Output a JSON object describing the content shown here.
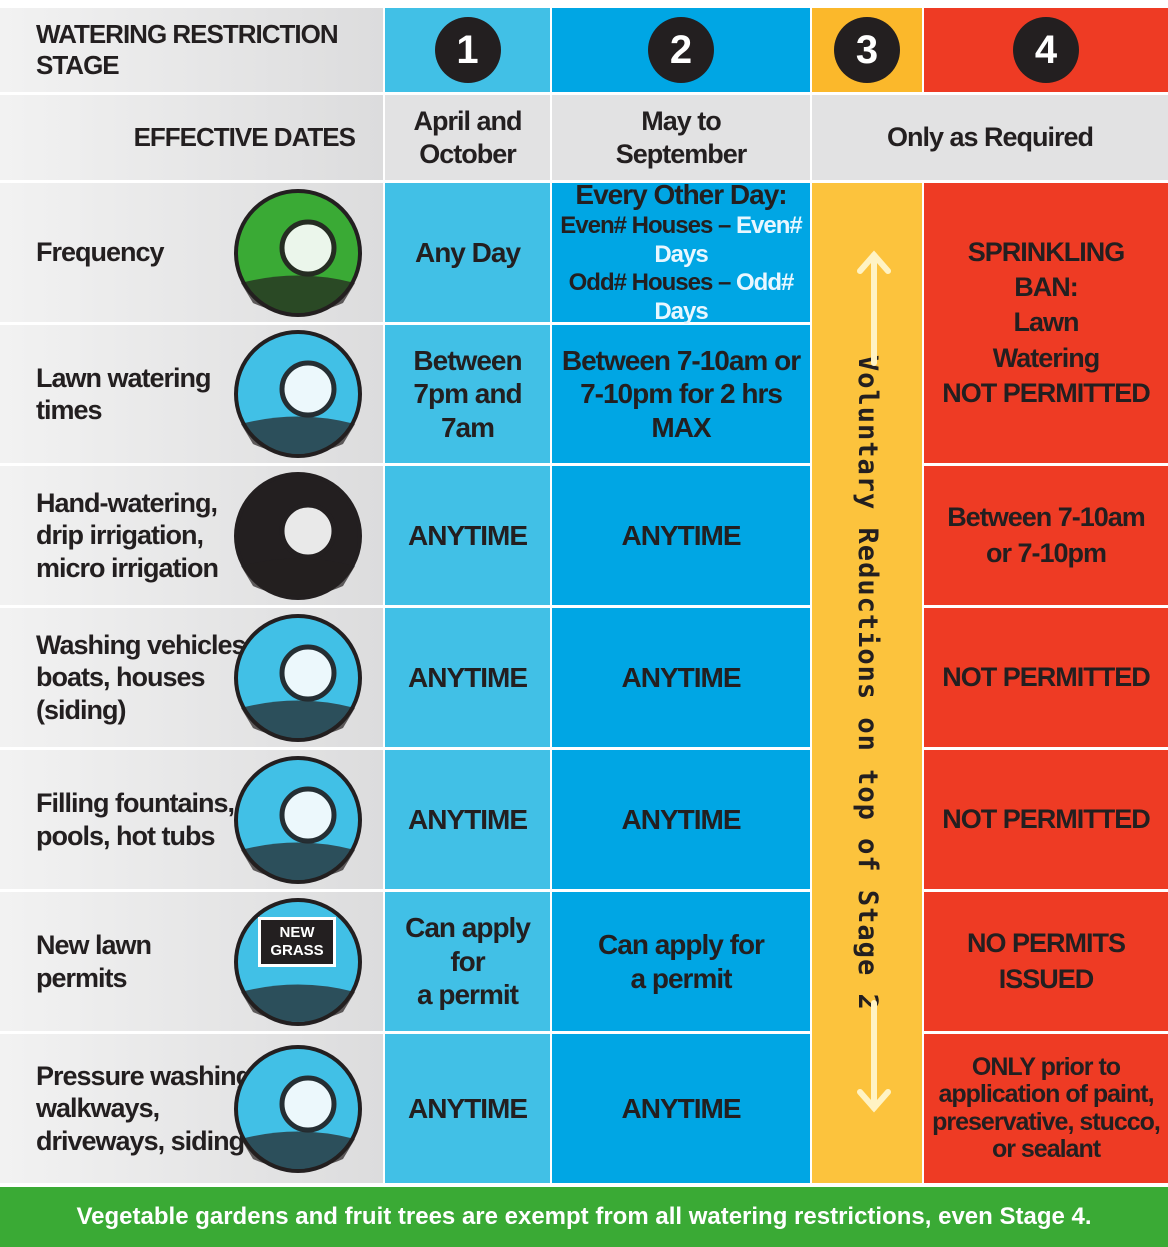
{
  "header": {
    "label": "WATERING RESTRICTION STAGE",
    "stages": [
      "1",
      "2",
      "3",
      "4"
    ]
  },
  "dates": {
    "label": "EFFECTIVE DATES",
    "stage1": "April and\nOctober",
    "stage2": "May to\nSeptember",
    "stage3_4": "Only as Required"
  },
  "rows": [
    {
      "label": "Frequency",
      "stage1": "Any Day",
      "stage2": {
        "title": "Every Other Day:",
        "lines": [
          [
            "Even# Houses –",
            "Even# Days"
          ],
          [
            "Odd# Houses –",
            "Odd# Days"
          ]
        ]
      }
    },
    {
      "label": "Lawn watering\ntimes",
      "stage1": "Between\n7pm and 7am",
      "stage2": "Between 7-10am or\n7-10pm for 2 hrs MAX"
    },
    {
      "label": "Hand-watering,\ndrip irrigation,\nmicro irrigation",
      "stage1": "ANYTIME",
      "stage2": "ANYTIME"
    },
    {
      "label": "Washing vehicles,\nboats, houses\n(siding)",
      "stage1": "ANYTIME",
      "stage2": "ANYTIME"
    },
    {
      "label": "Filling fountains,\npools, hot tubs",
      "stage1": "ANYTIME",
      "stage2": "ANYTIME"
    },
    {
      "label": "New lawn\npermits",
      "stage1": "Can apply for\na permit",
      "stage2": "Can apply for\na permit"
    },
    {
      "label": "Pressure washing\nwalkways,\ndriveways, siding",
      "stage1": "ANYTIME",
      "stage2": "ANYTIME"
    }
  ],
  "stage3": "Voluntary Reductions on top of Stage 2",
  "stage4": [
    "SPRINKLING\nBAN:\nLawn\nWatering\nNOT PERMITTED",
    "Between 7-10am\nor 7-10pm",
    "NOT PERMITTED",
    "NOT PERMITTED",
    "NO PERMITS ISSUED",
    "ONLY prior to\napplication of paint,\npreservative, stucco,\nor sealant"
  ],
  "icon_sign": "NEW\nGRASS",
  "footer": "Vegetable gardens and fruit trees are exempt from all watering restrictions, even Stage 4."
}
